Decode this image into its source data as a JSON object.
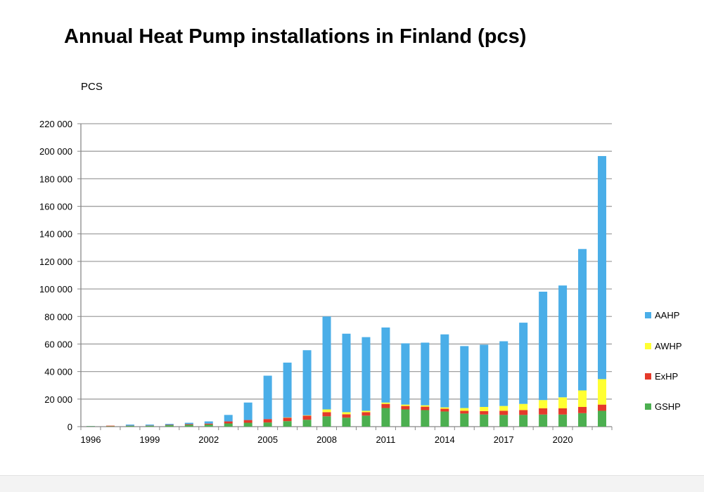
{
  "chart_data": {
    "type": "bar",
    "stacked": true,
    "title": "Annual Heat Pump installations in Finland (pcs)",
    "ylabel": "PCS",
    "xlabel": "",
    "ylim": [
      0,
      220000
    ],
    "yticks": [
      0,
      20000,
      40000,
      60000,
      80000,
      100000,
      120000,
      140000,
      160000,
      180000,
      200000,
      220000
    ],
    "ytick_labels": [
      "0",
      "20 000",
      "40 000",
      "60 000",
      "80 000",
      "100 000",
      "120 000",
      "140 000",
      "160 000",
      "180 000",
      "200 000",
      "220 000"
    ],
    "categories": [
      "1996",
      "1997",
      "1998",
      "1999",
      "2000",
      "2001",
      "2002",
      "2003",
      "2004",
      "2005",
      "2006",
      "2007",
      "2008",
      "2009",
      "2010",
      "2011",
      "2012",
      "2013",
      "2014",
      "2015",
      "2016",
      "2017",
      "2018",
      "2019",
      "2020",
      "2021",
      "2022"
    ],
    "xtick_labels": [
      "1996",
      "1999",
      "2002",
      "2005",
      "2008",
      "2011",
      "2014",
      "2017",
      "2020"
    ],
    "grid": true,
    "legend_position": "right",
    "series": [
      {
        "name": "GSHP",
        "color": "#4caf50",
        "values": [
          300,
          300,
          500,
          600,
          1000,
          1300,
          1500,
          2300,
          2800,
          3000,
          4000,
          5000,
          7500,
          6500,
          8000,
          13500,
          12500,
          12000,
          11000,
          9500,
          8800,
          8500,
          8500,
          8800,
          8800,
          9800,
          11500
        ]
      },
      {
        "name": "ExHP",
        "color": "#e53a2a",
        "values": [
          100,
          400,
          200,
          200,
          300,
          500,
          700,
          1500,
          2000,
          2500,
          2500,
          3000,
          3000,
          2500,
          2500,
          3000,
          2500,
          2500,
          2000,
          2000,
          2500,
          3000,
          3500,
          4500,
          4500,
          4500,
          4500
        ]
      },
      {
        "name": "AWHP",
        "color": "#ffff33",
        "values": [
          0,
          0,
          0,
          0,
          0,
          0,
          0,
          0,
          0,
          0,
          200,
          300,
          2000,
          1500,
          1000,
          1000,
          1000,
          1000,
          1000,
          2000,
          3000,
          3500,
          4500,
          6000,
          8000,
          12000,
          18500
        ]
      },
      {
        "name": "AAHP",
        "color": "#4aaee8",
        "values": [
          100,
          0,
          800,
          700,
          700,
          1000,
          1600,
          4700,
          12700,
          31500,
          39800,
          47200,
          67500,
          57000,
          53500,
          54500,
          44500,
          45500,
          53000,
          45000,
          45200,
          47000,
          59000,
          78700,
          81200,
          102700,
          162000
        ]
      }
    ]
  }
}
